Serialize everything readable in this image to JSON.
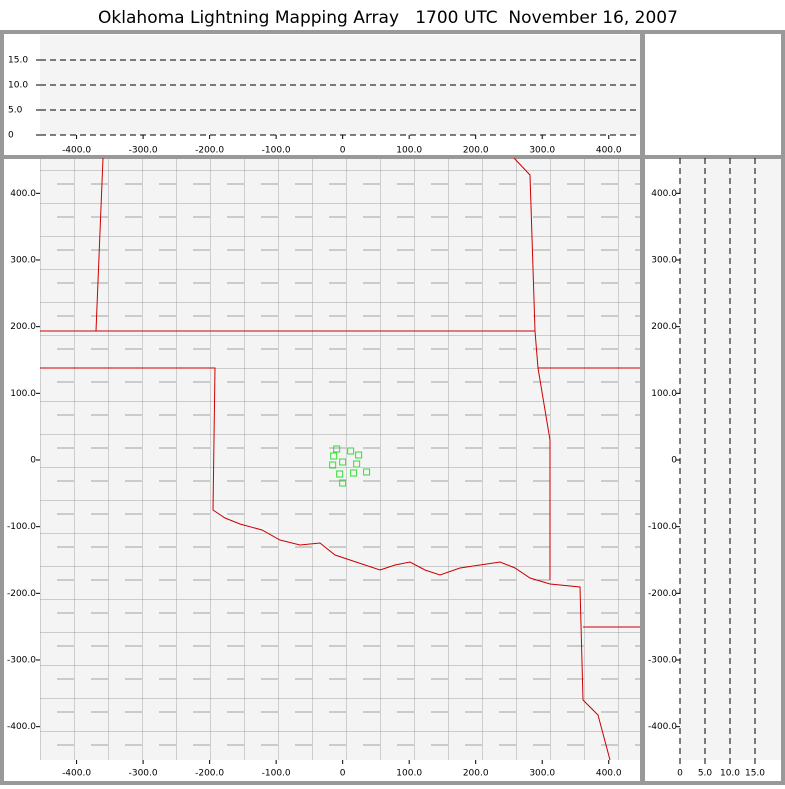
{
  "chart_data": [
    {
      "type": "scatter",
      "title": "Oklahoma Lightning Mapping Array   1700 UTC  November 16, 2007",
      "x": [
        -9,
        -13.5,
        12,
        24,
        0,
        -15,
        21,
        36,
        16.5,
        -4.5,
        0
      ],
      "y": [
        16.5,
        6,
        13.5,
        7.5,
        -3,
        -7.5,
        -6,
        -18,
        -19.5,
        -21,
        -34.5
      ],
      "color": "#33dd33",
      "xlim": [
        -455,
        447
      ],
      "ylim": [
        -450,
        453
      ],
      "xticks": [
        {
          "value": -400,
          "label": "-400.0"
        },
        {
          "value": -300,
          "label": "-300.0"
        },
        {
          "value": -200,
          "label": "-200.0"
        },
        {
          "value": -100,
          "label": "-100.0"
        },
        0,
        {
          "value": 100,
          "label": "100.0"
        },
        {
          "value": 200,
          "label": "200.0"
        },
        {
          "value": 300,
          "label": "300.0"
        },
        {
          "value": 400,
          "label": "400.0"
        }
      ],
      "yticks": [
        {
          "value": 400,
          "label": "400.0"
        },
        {
          "value": 300,
          "label": "300.0"
        },
        {
          "value": 200,
          "label": "200.0"
        },
        {
          "value": 100,
          "label": "100.0"
        },
        0,
        {
          "value": -100,
          "label": "-100.0"
        },
        {
          "value": -200,
          "label": "-200.0"
        },
        {
          "value": -300,
          "label": "-300.0"
        },
        {
          "value": -400,
          "label": "-400.0"
        }
      ]
    },
    {
      "type": "scatter",
      "xlim": [
        -455,
        447
      ],
      "ylim": [
        0,
        20
      ],
      "xticks": [
        {
          "value": -400,
          "label": "-400.0"
        },
        {
          "value": -300,
          "label": "-300.0"
        },
        {
          "value": -200,
          "label": "-200.0"
        },
        {
          "value": -100,
          "label": "-100.0"
        },
        0,
        {
          "value": 100,
          "label": "100.0"
        },
        {
          "value": 200,
          "label": "200.0"
        },
        {
          "value": 300,
          "label": "300.0"
        },
        {
          "value": 400,
          "label": "400.0"
        }
      ],
      "yticks": [
        0,
        {
          "value": 5,
          "label": "5.0"
        },
        {
          "value": 10,
          "label": "10.0"
        },
        {
          "value": 15,
          "label": "15.0"
        }
      ],
      "grid": "y"
    },
    {
      "type": "scatter",
      "xlim": [
        0,
        20
      ],
      "ylim": [
        -450,
        453
      ],
      "xticks": [
        0,
        {
          "value": 5,
          "label": "5.0"
        },
        {
          "value": 10,
          "label": "10.0"
        },
        {
          "value": 15,
          "label": "15.0"
        }
      ],
      "yticks": [
        {
          "value": 400,
          "label": "400.0"
        },
        {
          "value": 300,
          "label": "300.0"
        },
        {
          "value": 200,
          "label": "200.0"
        },
        {
          "value": 100,
          "label": "100.0"
        },
        0,
        {
          "value": -100,
          "label": "-100.0"
        },
        {
          "value": -200,
          "label": "-200.0"
        },
        {
          "value": -300,
          "label": "-300.0"
        },
        {
          "value": -400,
          "label": "-400.0"
        }
      ],
      "grid": "x"
    }
  ]
}
